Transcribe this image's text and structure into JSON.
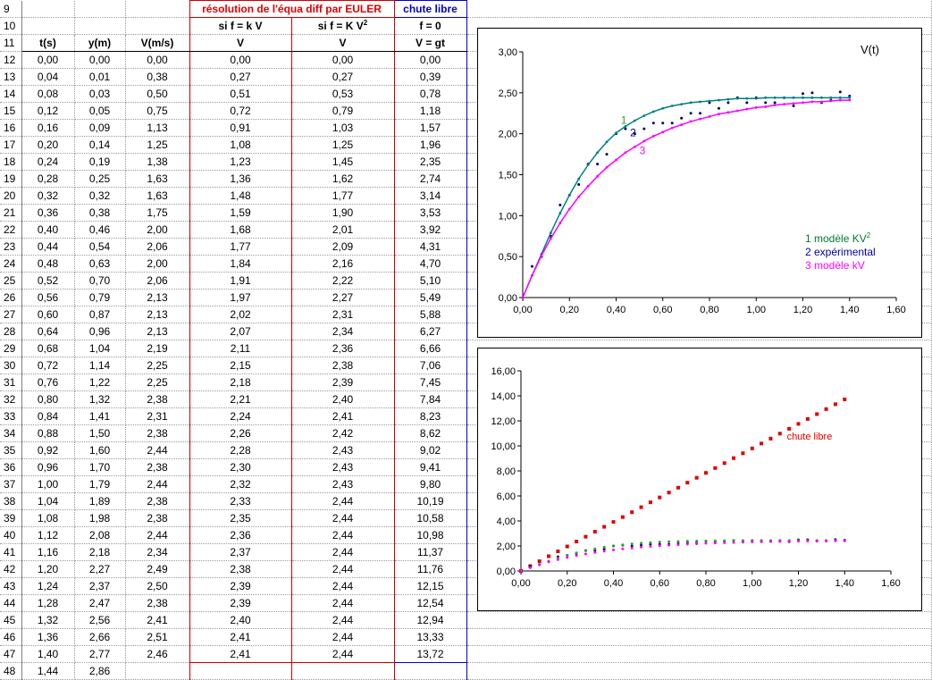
{
  "headers": {
    "euler_title": "résolution de l'équa diff par EULER",
    "libre_title": "chute libre",
    "col_t": "t(s)",
    "col_y": "y(m)",
    "col_v": "V(m/s)",
    "cond_kv": "si f = k V",
    "cond_kv2": "si f = K V",
    "cond_kv2_sup": "2",
    "cond_f0": "f = 0",
    "v_kv": "V",
    "v_kv2": "V",
    "v_gt": "V = gt"
  },
  "row_numbers": [
    "9",
    "10",
    "11",
    "12",
    "13",
    "14",
    "15",
    "16",
    "17",
    "18",
    "19",
    "20",
    "21",
    "22",
    "23",
    "24",
    "25",
    "26",
    "27",
    "28",
    "29",
    "30",
    "31",
    "32",
    "33",
    "34",
    "35",
    "36",
    "37",
    "38",
    "39",
    "40",
    "41",
    "42",
    "43",
    "44",
    "45",
    "46",
    "47",
    "48"
  ],
  "rows": [
    [
      "0,00",
      "0,00",
      "0,00",
      "0,00",
      "0,00",
      "0,00"
    ],
    [
      "0,04",
      "0,01",
      "0,38",
      "0,27",
      "0,27",
      "0,39"
    ],
    [
      "0,08",
      "0,03",
      "0,50",
      "0,51",
      "0,53",
      "0,78"
    ],
    [
      "0,12",
      "0,05",
      "0,75",
      "0,72",
      "0,79",
      "1,18"
    ],
    [
      "0,16",
      "0,09",
      "1,13",
      "0,91",
      "1,03",
      "1,57"
    ],
    [
      "0,20",
      "0,14",
      "1,25",
      "1,08",
      "1,25",
      "1,96"
    ],
    [
      "0,24",
      "0,19",
      "1,38",
      "1,23",
      "1,45",
      "2,35"
    ],
    [
      "0,28",
      "0,25",
      "1,63",
      "1,36",
      "1,62",
      "2,74"
    ],
    [
      "0,32",
      "0,32",
      "1,63",
      "1,48",
      "1,77",
      "3,14"
    ],
    [
      "0,36",
      "0,38",
      "1,75",
      "1,59",
      "1,90",
      "3,53"
    ],
    [
      "0,40",
      "0,46",
      "2,00",
      "1,68",
      "2,01",
      "3,92"
    ],
    [
      "0,44",
      "0,54",
      "2,06",
      "1,77",
      "2,09",
      "4,31"
    ],
    [
      "0,48",
      "0,63",
      "2,00",
      "1,84",
      "2,16",
      "4,70"
    ],
    [
      "0,52",
      "0,70",
      "2,06",
      "1,91",
      "2,22",
      "5,10"
    ],
    [
      "0,56",
      "0,79",
      "2,13",
      "1,97",
      "2,27",
      "5,49"
    ],
    [
      "0,60",
      "0,87",
      "2,13",
      "2,02",
      "2,31",
      "5,88"
    ],
    [
      "0,64",
      "0,96",
      "2,13",
      "2,07",
      "2,34",
      "6,27"
    ],
    [
      "0,68",
      "1,04",
      "2,19",
      "2,11",
      "2,36",
      "6,66"
    ],
    [
      "0,72",
      "1,14",
      "2,25",
      "2,15",
      "2,38",
      "7,06"
    ],
    [
      "0,76",
      "1,22",
      "2,25",
      "2,18",
      "2,39",
      "7,45"
    ],
    [
      "0,80",
      "1,32",
      "2,38",
      "2,21",
      "2,40",
      "7,84"
    ],
    [
      "0,84",
      "1,41",
      "2,31",
      "2,24",
      "2,41",
      "8,23"
    ],
    [
      "0,88",
      "1,50",
      "2,38",
      "2,26",
      "2,42",
      "8,62"
    ],
    [
      "0,92",
      "1,60",
      "2,44",
      "2,28",
      "2,43",
      "9,02"
    ],
    [
      "0,96",
      "1,70",
      "2,38",
      "2,30",
      "2,43",
      "9,41"
    ],
    [
      "1,00",
      "1,79",
      "2,44",
      "2,32",
      "2,43",
      "9,80"
    ],
    [
      "1,04",
      "1,89",
      "2,38",
      "2,33",
      "2,44",
      "10,19"
    ],
    [
      "1,08",
      "1,98",
      "2,38",
      "2,35",
      "2,44",
      "10,58"
    ],
    [
      "1,12",
      "2,08",
      "2,44",
      "2,36",
      "2,44",
      "10,98"
    ],
    [
      "1,16",
      "2,18",
      "2,34",
      "2,37",
      "2,44",
      "11,37"
    ],
    [
      "1,20",
      "2,27",
      "2,49",
      "2,38",
      "2,44",
      "11,76"
    ],
    [
      "1,24",
      "2,37",
      "2,50",
      "2,39",
      "2,44",
      "12,15"
    ],
    [
      "1,28",
      "2,47",
      "2,38",
      "2,39",
      "2,44",
      "12,54"
    ],
    [
      "1,32",
      "2,56",
      "2,41",
      "2,40",
      "2,44",
      "12,94"
    ],
    [
      "1,36",
      "2,66",
      "2,51",
      "2,41",
      "2,44",
      "13,33"
    ],
    [
      "1,40",
      "2,77",
      "2,46",
      "2,41",
      "2,44",
      "13,72"
    ],
    [
      "1,44",
      "2,86",
      "",
      "",
      "",
      ""
    ]
  ],
  "chart_data": [
    {
      "type": "scatter",
      "title": "V(t)",
      "xlim": [
        0,
        1.6
      ],
      "ylim": [
        0,
        3
      ],
      "xticks": [
        "0,00",
        "0,20",
        "0,40",
        "0,60",
        "0,80",
        "1,00",
        "1,20",
        "1,40",
        "1,60"
      ],
      "yticks": [
        "0,00",
        "0,50",
        "1,00",
        "1,50",
        "2,00",
        "2,50",
        "3,00"
      ],
      "legend": [
        {
          "text": "1 modèle KV",
          "sup": "2",
          "color": "#007a2f"
        },
        {
          "text": "2 expérimental",
          "sup": "",
          "color": "#000099"
        },
        {
          "text": "3 modèle kV",
          "sup": "",
          "color": "#ff00ff"
        }
      ],
      "curve_labels": [
        {
          "text": "1",
          "color": "#2ca02c",
          "x": 0.42,
          "y": 2.12
        },
        {
          "text": "2",
          "color": "#000099",
          "x": 0.46,
          "y": 1.97
        },
        {
          "text": "3",
          "color": "#ff00ff",
          "x": 0.5,
          "y": 1.75
        }
      ],
      "series": [
        {
          "name": "expérimental",
          "color": "#000066",
          "style": "dots",
          "x": [
            0,
            0.04,
            0.08,
            0.12,
            0.16,
            0.2,
            0.24,
            0.28,
            0.32,
            0.36,
            0.4,
            0.44,
            0.48,
            0.52,
            0.56,
            0.6,
            0.64,
            0.68,
            0.72,
            0.76,
            0.8,
            0.84,
            0.88,
            0.92,
            0.96,
            1.0,
            1.04,
            1.08,
            1.12,
            1.16,
            1.2,
            1.24,
            1.28,
            1.32,
            1.36,
            1.4
          ],
          "y": [
            0,
            0.38,
            0.5,
            0.75,
            1.13,
            1.25,
            1.38,
            1.63,
            1.63,
            1.75,
            2.0,
            2.06,
            2.0,
            2.06,
            2.13,
            2.13,
            2.13,
            2.19,
            2.25,
            2.25,
            2.38,
            2.31,
            2.38,
            2.44,
            2.38,
            2.44,
            2.38,
            2.38,
            2.44,
            2.34,
            2.49,
            2.5,
            2.38,
            2.41,
            2.51,
            2.46
          ]
        },
        {
          "name": "modèle KV2",
          "color": "#008080",
          "style": "line-dots",
          "x": [
            0,
            0.04,
            0.08,
            0.12,
            0.16,
            0.2,
            0.24,
            0.28,
            0.32,
            0.36,
            0.4,
            0.44,
            0.48,
            0.52,
            0.56,
            0.6,
            0.64,
            0.68,
            0.72,
            0.76,
            0.8,
            0.84,
            0.88,
            0.92,
            0.96,
            1.0,
            1.04,
            1.08,
            1.12,
            1.16,
            1.2,
            1.24,
            1.28,
            1.32,
            1.36,
            1.4
          ],
          "y": [
            0,
            0.27,
            0.53,
            0.79,
            1.03,
            1.25,
            1.45,
            1.62,
            1.77,
            1.9,
            2.01,
            2.09,
            2.16,
            2.22,
            2.27,
            2.31,
            2.34,
            2.36,
            2.38,
            2.39,
            2.4,
            2.41,
            2.42,
            2.43,
            2.43,
            2.43,
            2.44,
            2.44,
            2.44,
            2.44,
            2.44,
            2.44,
            2.44,
            2.44,
            2.44,
            2.44
          ]
        },
        {
          "name": "modèle kV",
          "color": "#ff00ff",
          "style": "line-dots",
          "x": [
            0,
            0.04,
            0.08,
            0.12,
            0.16,
            0.2,
            0.24,
            0.28,
            0.32,
            0.36,
            0.4,
            0.44,
            0.48,
            0.52,
            0.56,
            0.6,
            0.64,
            0.68,
            0.72,
            0.76,
            0.8,
            0.84,
            0.88,
            0.92,
            0.96,
            1.0,
            1.04,
            1.08,
            1.12,
            1.16,
            1.2,
            1.24,
            1.28,
            1.32,
            1.36,
            1.4
          ],
          "y": [
            0,
            0.27,
            0.51,
            0.72,
            0.91,
            1.08,
            1.23,
            1.36,
            1.48,
            1.59,
            1.68,
            1.77,
            1.84,
            1.91,
            1.97,
            2.02,
            2.07,
            2.11,
            2.15,
            2.18,
            2.21,
            2.24,
            2.26,
            2.28,
            2.3,
            2.32,
            2.33,
            2.35,
            2.36,
            2.37,
            2.38,
            2.39,
            2.39,
            2.4,
            2.41,
            2.41
          ]
        }
      ]
    },
    {
      "type": "scatter",
      "title": "",
      "xlim": [
        0,
        1.6
      ],
      "ylim": [
        0,
        16
      ],
      "xticks": [
        "0,00",
        "0,20",
        "0,40",
        "0,60",
        "0,80",
        "1,00",
        "1,20",
        "1,40",
        "1,60"
      ],
      "yticks": [
        "0,00",
        "2,00",
        "4,00",
        "6,00",
        "8,00",
        "10,00",
        "12,00",
        "14,00",
        "16,00"
      ],
      "annotation": {
        "text": "chute libre",
        "color": "#e00000",
        "x": 1.15,
        "y": 10.5
      },
      "series": [
        {
          "name": "chute libre",
          "color": "#e00000",
          "style": "squares",
          "x": [
            0,
            0.04,
            0.08,
            0.12,
            0.16,
            0.2,
            0.24,
            0.28,
            0.32,
            0.36,
            0.4,
            0.44,
            0.48,
            0.52,
            0.56,
            0.6,
            0.64,
            0.68,
            0.72,
            0.76,
            0.8,
            0.84,
            0.88,
            0.92,
            0.96,
            1.0,
            1.04,
            1.08,
            1.12,
            1.16,
            1.2,
            1.24,
            1.28,
            1.32,
            1.36,
            1.4
          ],
          "y": [
            0,
            0.39,
            0.78,
            1.18,
            1.57,
            1.96,
            2.35,
            2.74,
            3.14,
            3.53,
            3.92,
            4.31,
            4.7,
            5.1,
            5.49,
            5.88,
            6.27,
            6.66,
            7.06,
            7.45,
            7.84,
            8.23,
            8.62,
            9.02,
            9.41,
            9.8,
            10.19,
            10.58,
            10.98,
            11.37,
            11.76,
            12.15,
            12.54,
            12.94,
            13.33,
            13.72
          ]
        },
        {
          "name": "expérimental",
          "color": "#000066",
          "style": "dots",
          "x": [
            0,
            0.04,
            0.08,
            0.12,
            0.16,
            0.2,
            0.24,
            0.28,
            0.32,
            0.36,
            0.4,
            0.44,
            0.48,
            0.52,
            0.56,
            0.6,
            0.64,
            0.68,
            0.72,
            0.76,
            0.8,
            0.84,
            0.88,
            0.92,
            0.96,
            1.0,
            1.04,
            1.08,
            1.12,
            1.16,
            1.2,
            1.24,
            1.28,
            1.32,
            1.36,
            1.4
          ],
          "y": [
            0,
            0.38,
            0.5,
            0.75,
            1.13,
            1.25,
            1.38,
            1.63,
            1.63,
            1.75,
            2.0,
            2.06,
            2.0,
            2.06,
            2.13,
            2.13,
            2.13,
            2.19,
            2.25,
            2.25,
            2.38,
            2.31,
            2.38,
            2.44,
            2.38,
            2.44,
            2.38,
            2.38,
            2.44,
            2.34,
            2.49,
            2.5,
            2.38,
            2.41,
            2.51,
            2.46
          ]
        },
        {
          "name": "modèle KV2",
          "color": "#2ca02c",
          "style": "dots",
          "x": [
            0,
            0.04,
            0.08,
            0.12,
            0.16,
            0.2,
            0.24,
            0.28,
            0.32,
            0.36,
            0.4,
            0.44,
            0.48,
            0.52,
            0.56,
            0.6,
            0.64,
            0.68,
            0.72,
            0.76,
            0.8,
            0.84,
            0.88,
            0.92,
            0.96,
            1.0,
            1.04,
            1.08,
            1.12,
            1.16,
            1.2,
            1.24,
            1.28,
            1.32,
            1.36,
            1.4
          ],
          "y": [
            0,
            0.27,
            0.53,
            0.79,
            1.03,
            1.25,
            1.45,
            1.62,
            1.77,
            1.9,
            2.01,
            2.09,
            2.16,
            2.22,
            2.27,
            2.31,
            2.34,
            2.36,
            2.38,
            2.39,
            2.4,
            2.41,
            2.42,
            2.43,
            2.43,
            2.43,
            2.44,
            2.44,
            2.44,
            2.44,
            2.44,
            2.44,
            2.44,
            2.44,
            2.44,
            2.44
          ]
        },
        {
          "name": "modèle kV",
          "color": "#ff00ff",
          "style": "dots",
          "x": [
            0,
            0.04,
            0.08,
            0.12,
            0.16,
            0.2,
            0.24,
            0.28,
            0.32,
            0.36,
            0.4,
            0.44,
            0.48,
            0.52,
            0.56,
            0.6,
            0.64,
            0.68,
            0.72,
            0.76,
            0.8,
            0.84,
            0.88,
            0.92,
            0.96,
            1.0,
            1.04,
            1.08,
            1.12,
            1.16,
            1.2,
            1.24,
            1.28,
            1.32,
            1.36,
            1.4
          ],
          "y": [
            0,
            0.27,
            0.51,
            0.72,
            0.91,
            1.08,
            1.23,
            1.36,
            1.48,
            1.59,
            1.68,
            1.77,
            1.84,
            1.91,
            1.97,
            2.02,
            2.07,
            2.11,
            2.15,
            2.18,
            2.21,
            2.24,
            2.26,
            2.28,
            2.3,
            2.32,
            2.33,
            2.35,
            2.36,
            2.37,
            2.38,
            2.39,
            2.39,
            2.4,
            2.41,
            2.41
          ]
        }
      ]
    }
  ]
}
